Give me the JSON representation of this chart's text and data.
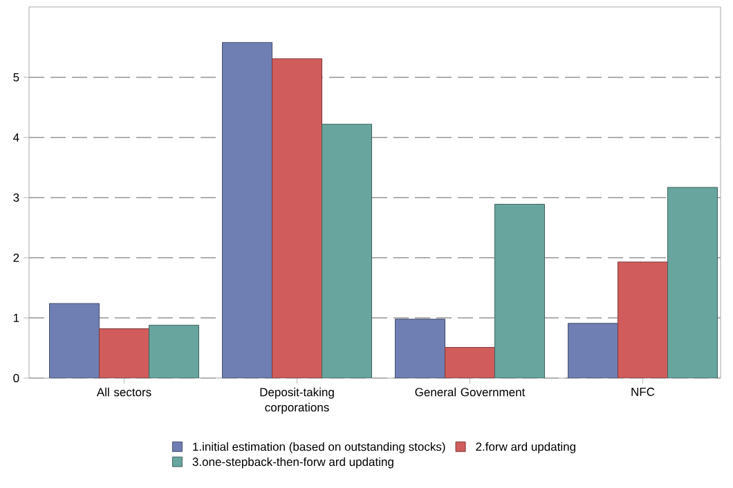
{
  "chart_data": {
    "type": "bar",
    "categories": [
      "All sectors",
      "Deposit-taking corporations",
      "General Government",
      "NFC"
    ],
    "series": [
      {
        "name": "1.initial estimation (based on outstanding stocks)",
        "color": "#6f7fb3",
        "values": [
          1.24,
          5.58,
          0.98,
          0.91
        ]
      },
      {
        "name": "2.forw ard updating",
        "color": "#d05c5c",
        "values": [
          0.82,
          5.31,
          0.51,
          1.93
        ]
      },
      {
        "name": "3.one-stepback-then-forw ard updating",
        "color": "#67a59e",
        "values": [
          0.88,
          4.22,
          2.89,
          3.17
        ]
      }
    ],
    "ylim": [
      0,
      6.17
    ],
    "yticks": [
      0,
      1,
      2,
      3,
      4,
      5
    ],
    "grid": "y",
    "legend": "bottom"
  }
}
